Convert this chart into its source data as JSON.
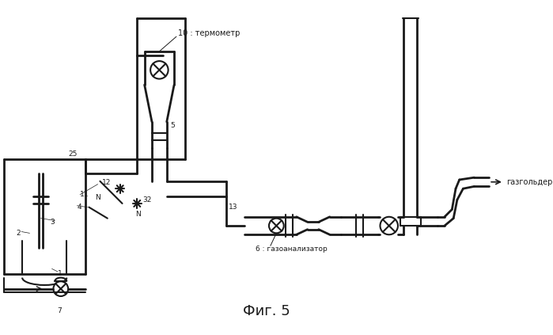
{
  "bg_color": "#ffffff",
  "line_color": "#1a1a1a",
  "fig_label": "Фиг. 5",
  "label_10": "10 : термометр",
  "label_6": "6 : газоанализатор",
  "label_gazholder": "газгольдер",
  "lw": 1.5,
  "lw_thick": 2.0
}
